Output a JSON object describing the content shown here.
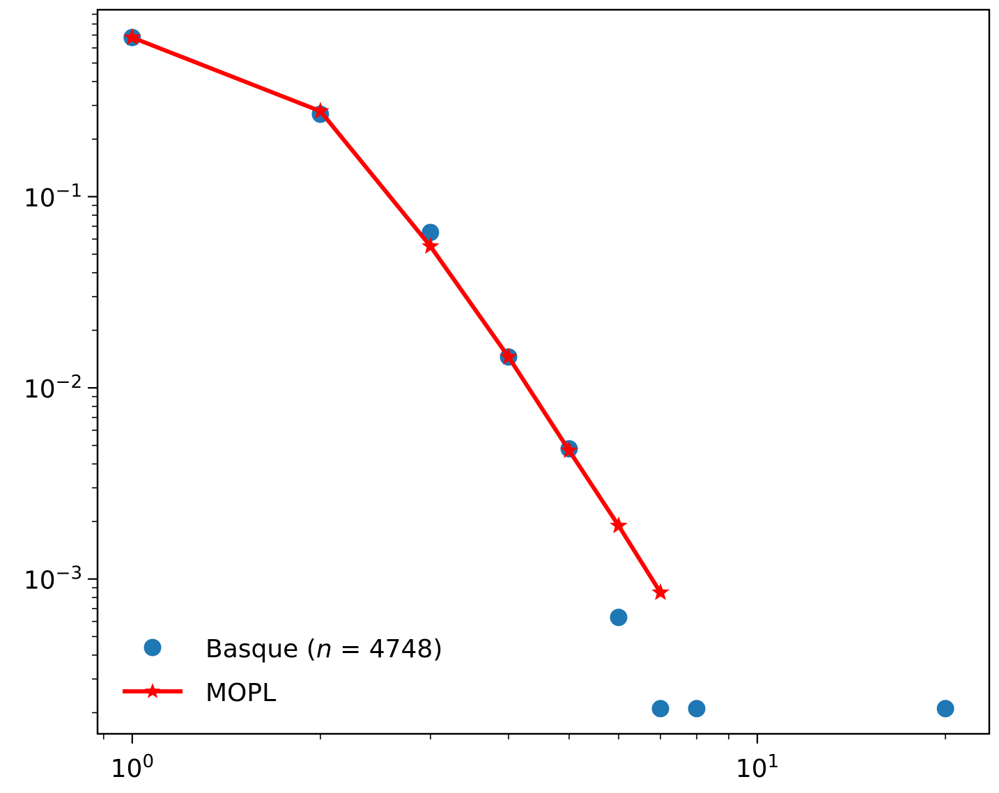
{
  "chart_data": {
    "type": "scatter",
    "xscale": "log",
    "yscale": "log",
    "xlim": [
      0.88,
      23.5
    ],
    "ylim": [
      0.000155,
      0.95
    ],
    "grid": false,
    "legend_position": "lower-left",
    "x_ticks": [
      {
        "value": 1,
        "base": "10",
        "exp": "0"
      },
      {
        "value": 10,
        "base": "10",
        "exp": "1"
      }
    ],
    "y_ticks": [
      {
        "value": 0.001,
        "base": "10",
        "exp": "−3"
      },
      {
        "value": 0.01,
        "base": "10",
        "exp": "−2"
      },
      {
        "value": 0.1,
        "base": "10",
        "exp": "−1"
      }
    ],
    "series": [
      {
        "name": "Basque (n = 4748)",
        "legend_prefix": "Basque (",
        "legend_var": "n",
        "legend_suffix": " = 4748)",
        "style": "markers",
        "marker": "circle",
        "color": "#1f77b4",
        "x": [
          1,
          2,
          3,
          4,
          5,
          6,
          7,
          8,
          20
        ],
        "y": [
          0.68,
          0.27,
          0.065,
          0.0145,
          0.0048,
          0.00063,
          0.00021,
          0.00021,
          0.00021
        ]
      },
      {
        "name": "MOPL",
        "legend_label": "MOPL",
        "style": "line-markers",
        "marker": "star",
        "color": "#ff0000",
        "x": [
          1,
          2,
          3,
          4,
          5,
          6,
          7
        ],
        "y": [
          0.68,
          0.28,
          0.055,
          0.0145,
          0.0047,
          0.0019,
          0.00085
        ]
      }
    ]
  }
}
